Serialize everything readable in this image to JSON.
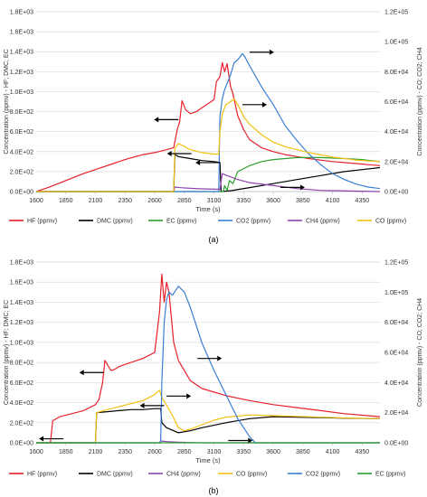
{
  "chart_data": [
    {
      "type": "line",
      "panel_label": "(a)",
      "xlabel": "Time (s)",
      "ylabel_left": "Concentration (ppmv) - HF; DMC; EC",
      "ylabel_right": "Concentration (ppmv) - CO; CO2; CH4",
      "xlim": [
        1600,
        4500
      ],
      "ylim_left": [
        0,
        1800
      ],
      "ylim_right": [
        0,
        120000
      ],
      "x_ticks": [
        1600,
        1850,
        2100,
        2350,
        2600,
        2850,
        3100,
        3350,
        3600,
        3850,
        4100,
        4350
      ],
      "y_ticks_left": [
        "0.0E+00",
        "2.0E+02",
        "4.0E+02",
        "6.0E+02",
        "8.0E+02",
        "1.0E+03",
        "1.2E+03",
        "1.4E+03",
        "1.6E+03",
        "1.8E+03"
      ],
      "y_ticks_right": [
        "0.0E+00",
        "2.0E+04",
        "4.0E+04",
        "6.0E+04",
        "8.0E+04",
        "1.0E+05",
        "1.2E+05"
      ],
      "y_tick_values_left": [
        0,
        200,
        400,
        600,
        800,
        1000,
        1200,
        1400,
        1600,
        1800
      ],
      "y_tick_values_right": [
        0,
        20000,
        40000,
        60000,
        80000,
        100000,
        120000
      ],
      "grid": "horizontal",
      "legend_position": "bottom",
      "series": [
        {
          "name": "HF (ppmv)",
          "axis": "left",
          "color": "#e8202a",
          "x": [
            1600,
            1700,
            1850,
            2000,
            2100,
            2250,
            2350,
            2500,
            2600,
            2700,
            2760,
            2790,
            2810,
            2830,
            2860,
            2900,
            2950,
            3000,
            3050,
            3100,
            3120,
            3150,
            3170,
            3190,
            3210,
            3240,
            3260,
            3300,
            3350,
            3400,
            3500,
            3600,
            3700,
            3800,
            3900,
            4000,
            4100,
            4200,
            4300,
            4400,
            4500
          ],
          "y": [
            0,
            40,
            110,
            180,
            220,
            280,
            320,
            370,
            390,
            420,
            440,
            620,
            700,
            910,
            820,
            780,
            800,
            840,
            880,
            920,
            1100,
            1150,
            1290,
            1200,
            1280,
            1050,
            980,
            760,
            620,
            520,
            440,
            400,
            370,
            350,
            330,
            315,
            300,
            290,
            280,
            270,
            260
          ]
        },
        {
          "name": "DMC (ppmv)",
          "axis": "left",
          "color": "#000000",
          "x": [
            1600,
            2760,
            2770,
            2800,
            2900,
            3000,
            3100,
            3150,
            3160,
            3165,
            3250,
            3400,
            3600,
            3800,
            4000,
            4200,
            4350,
            4500
          ],
          "y": [
            0,
            0,
            370,
            350,
            330,
            310,
            300,
            290,
            0,
            0,
            10,
            40,
            80,
            120,
            160,
            200,
            220,
            240
          ]
        },
        {
          "name": "EC (ppmv)",
          "axis": "left",
          "color": "#2ca02c",
          "x": [
            1600,
            3180,
            3190,
            3210,
            3230,
            3260,
            3300,
            3350,
            3400,
            3500,
            3600,
            3800,
            4000,
            4200,
            4350,
            4500
          ],
          "y": [
            0,
            0,
            60,
            10,
            110,
            80,
            200,
            230,
            260,
            300,
            320,
            340,
            340,
            330,
            320,
            300
          ]
        },
        {
          "name": "CO2 (ppmv)",
          "axis": "right",
          "color": "#3b7fd4",
          "x": [
            1600,
            3140,
            3150,
            3170,
            3190,
            3210,
            3240,
            3270,
            3300,
            3340,
            3360,
            3400,
            3500,
            3600,
            3700,
            3800,
            3900,
            4000,
            4100,
            4200,
            4300,
            4400,
            4500
          ],
          "y": [
            0,
            0,
            50000,
            62000,
            68000,
            72000,
            78000,
            86000,
            88000,
            92000,
            90000,
            84000,
            70000,
            58000,
            44000,
            34000,
            25000,
            18000,
            12000,
            8000,
            5000,
            3000,
            2000
          ]
        },
        {
          "name": "CH4 (ppmv)",
          "axis": "right",
          "color": "#8e44ad",
          "x": [
            1600,
            2760,
            2770,
            2820,
            2900,
            3000,
            3150,
            3170,
            3200,
            3300,
            3400,
            3600,
            3800,
            4000,
            4500
          ],
          "y": [
            0,
            0,
            3000,
            2600,
            2200,
            1800,
            1500,
            12000,
            11000,
            8000,
            6000,
            4000,
            2000,
            800,
            0
          ]
        },
        {
          "name": "CO (ppmv)",
          "axis": "right",
          "color": "#f2c10f",
          "x": [
            1600,
            2760,
            2770,
            2800,
            2830,
            2900,
            3000,
            3100,
            3140,
            3150,
            3170,
            3200,
            3240,
            3270,
            3300,
            3350,
            3400,
            3500,
            3600,
            3700,
            3800,
            3900,
            4000,
            4100,
            4200,
            4300,
            4400,
            4500
          ],
          "y": [
            0,
            0,
            29000,
            32000,
            31000,
            28000,
            26000,
            25000,
            25000,
            40000,
            52000,
            58000,
            60000,
            62000,
            58000,
            50000,
            45000,
            38000,
            33000,
            30000,
            28000,
            26000,
            24500,
            23000,
            22000,
            21000,
            20500,
            20000
          ]
        }
      ],
      "annotations": [
        {
          "type": "arrow",
          "direction": "left",
          "x": 2800,
          "y": 720,
          "axis": "left"
        },
        {
          "type": "arrow",
          "direction": "left",
          "x": 2910,
          "y": 380,
          "axis": "left"
        },
        {
          "type": "arrow",
          "direction": "left",
          "x": 3150,
          "y": 290,
          "axis": "left"
        },
        {
          "type": "arrow",
          "direction": "right",
          "x": 3400,
          "y": 93000,
          "axis": "right"
        },
        {
          "type": "arrow",
          "direction": "right",
          "x": 3340,
          "y": 58000,
          "axis": "right"
        },
        {
          "type": "arrow",
          "direction": "right",
          "x": 3660,
          "y": 2800,
          "axis": "right"
        }
      ]
    },
    {
      "type": "line",
      "panel_label": "(b)",
      "xlabel": "Time (s)",
      "ylabel_left": "Concentration (ppmv) - HF; DMC; EC",
      "ylabel_right": "Concentration (ppmv) - CO; CO2; CH4",
      "xlim": [
        1600,
        4500
      ],
      "ylim_left": [
        0,
        1800
      ],
      "ylim_right": [
        0,
        120000
      ],
      "x_ticks": [
        1600,
        1850,
        2100,
        2350,
        2600,
        2850,
        3100,
        3350,
        3600,
        3850,
        4100,
        4350
      ],
      "y_ticks_left": [
        "0.0E+00",
        "2.0E+02",
        "4.0E+02",
        "6.0E+02",
        "8.0E+02",
        "1.0E+03",
        "1.2E+03",
        "1.4E+03",
        "1.6E+03",
        "1.8E+03"
      ],
      "y_ticks_right": [
        "0.0E+00",
        "2.0E+04",
        "4.0E+04",
        "6.0E+04",
        "8.0E+04",
        "1.0E+05",
        "1.2E+05"
      ],
      "y_tick_values_left": [
        0,
        200,
        400,
        600,
        800,
        1000,
        1200,
        1400,
        1600,
        1800
      ],
      "y_tick_values_right": [
        0,
        20000,
        40000,
        60000,
        80000,
        100000,
        120000
      ],
      "grid": "horizontal",
      "legend_position": "bottom",
      "series": [
        {
          "name": "HF (ppmv)",
          "axis": "left",
          "color": "#e8202a",
          "x": [
            1600,
            1720,
            1740,
            1800,
            1900,
            2000,
            2100,
            2130,
            2160,
            2180,
            2200,
            2230,
            2260,
            2300,
            2400,
            2500,
            2600,
            2640,
            2660,
            2680,
            2700,
            2720,
            2740,
            2760,
            2800,
            2900,
            3000,
            3200,
            3400,
            3600,
            3800,
            4000,
            4200,
            4400,
            4500
          ],
          "y": [
            0,
            0,
            220,
            260,
            290,
            320,
            380,
            430,
            600,
            820,
            780,
            720,
            730,
            760,
            800,
            840,
            900,
            1300,
            1680,
            1400,
            1600,
            1500,
            1250,
            1000,
            820,
            620,
            540,
            470,
            420,
            380,
            350,
            320,
            290,
            270,
            260
          ]
        },
        {
          "name": "DMC (ppmv)",
          "axis": "left",
          "color": "#000000",
          "x": [
            1600,
            2100,
            2110,
            2200,
            2300,
            2400,
            2500,
            2600,
            2650,
            2660,
            2700,
            2800,
            2900,
            3000,
            3200,
            3400,
            3600,
            3800,
            4000,
            4200,
            4500
          ],
          "y": [
            0,
            0,
            300,
            310,
            320,
            330,
            330,
            340,
            340,
            200,
            150,
            100,
            120,
            150,
            200,
            240,
            260,
            255,
            250,
            245,
            240
          ]
        },
        {
          "name": "CH4 (ppmv)",
          "axis": "right",
          "color": "#8e44ad",
          "x": [
            1600,
            2640,
            2650,
            2700,
            2800,
            2900,
            3000,
            3200,
            4500
          ],
          "y": [
            0,
            0,
            1200,
            800,
            400,
            200,
            0,
            0,
            0
          ]
        },
        {
          "name": "CO (ppmv)",
          "axis": "right",
          "color": "#f2c10f",
          "x": [
            1600,
            2100,
            2110,
            2200,
            2300,
            2400,
            2500,
            2600,
            2640,
            2660,
            2700,
            2750,
            2800,
            2850,
            2900,
            3000,
            3100,
            3200,
            3400,
            3600,
            3800,
            4000,
            4200,
            4500
          ],
          "y": [
            0,
            0,
            20000,
            22000,
            24000,
            26000,
            28000,
            32000,
            35000,
            30000,
            25000,
            18000,
            10000,
            8000,
            9000,
            12000,
            15000,
            17000,
            18500,
            18000,
            17500,
            17000,
            16500,
            16000
          ]
        },
        {
          "name": "CO2 (ppmv)",
          "axis": "right",
          "color": "#3b7fd4",
          "x": [
            1600,
            2650,
            2660,
            2680,
            2700,
            2720,
            2750,
            2800,
            2850,
            2900,
            2950,
            3000,
            3100,
            3200,
            3300,
            3400,
            3450,
            4500
          ],
          "y": [
            0,
            0,
            40000,
            80000,
            95000,
            100000,
            98000,
            104000,
            100000,
            90000,
            78000,
            66000,
            48000,
            32000,
            16000,
            4000,
            0,
            0
          ]
        },
        {
          "name": "EC (ppmv)",
          "axis": "left",
          "color": "#2ca02c",
          "x": [
            1600,
            4500
          ],
          "y": [
            0,
            0
          ]
        }
      ],
      "annotations": [
        {
          "type": "arrow",
          "direction": "left",
          "x": 2170,
          "y": 700,
          "axis": "left"
        },
        {
          "type": "arrow",
          "direction": "left",
          "x": 2680,
          "y": 370,
          "axis": "left"
        },
        {
          "type": "arrow",
          "direction": "right",
          "x": 2700,
          "y": 31000,
          "axis": "right"
        },
        {
          "type": "arrow",
          "direction": "right",
          "x": 2960,
          "y": 56000,
          "axis": "right"
        },
        {
          "type": "arrow",
          "direction": "right",
          "x": 3220,
          "y": 1500,
          "axis": "right"
        },
        {
          "type": "arrow",
          "direction": "left",
          "x": 1830,
          "y": 40,
          "axis": "left"
        }
      ]
    }
  ]
}
